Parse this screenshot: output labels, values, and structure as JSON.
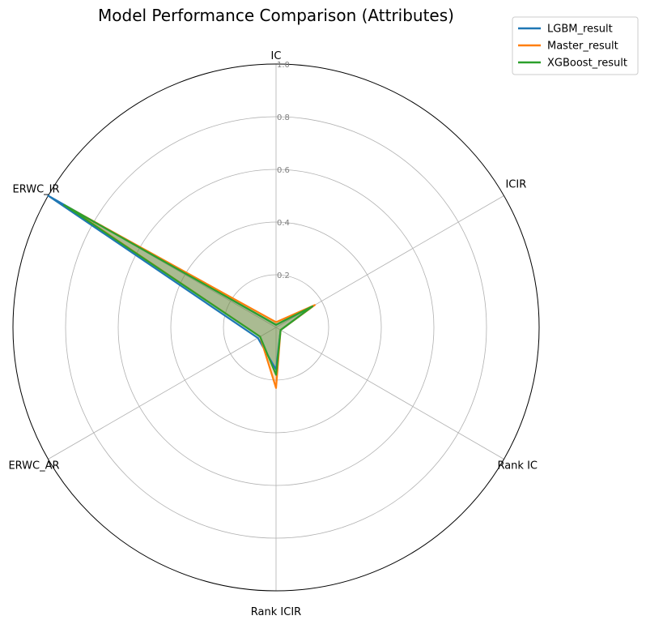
{
  "chart_data": {
    "type": "radar",
    "title": "Model Performance Comparison (Attributes)",
    "axes": [
      "IC",
      "ICIR",
      "Rank IC",
      "Rank ICIR",
      "ERWC_AR",
      "ERWC_IR"
    ],
    "rlim": [
      0,
      1.0
    ],
    "r_ticks": [
      "0.2",
      "0.4",
      "0.6",
      "0.8",
      "1.0"
    ],
    "grid": true,
    "legend_position": "top-right",
    "series": [
      {
        "name": "LGBM_result",
        "color": "#1f77b4",
        "values": [
          0.01,
          0.16,
          0.02,
          0.16,
          0.08,
          1.0
        ]
      },
      {
        "name": "Master_result",
        "color": "#ff7f0e",
        "values": [
          0.02,
          0.17,
          0.02,
          0.23,
          0.07,
          0.91
        ]
      },
      {
        "name": "XGBoost_result",
        "color": "#2ca02c",
        "values": [
          0.01,
          0.16,
          0.02,
          0.18,
          0.07,
          0.93
        ]
      }
    ]
  }
}
